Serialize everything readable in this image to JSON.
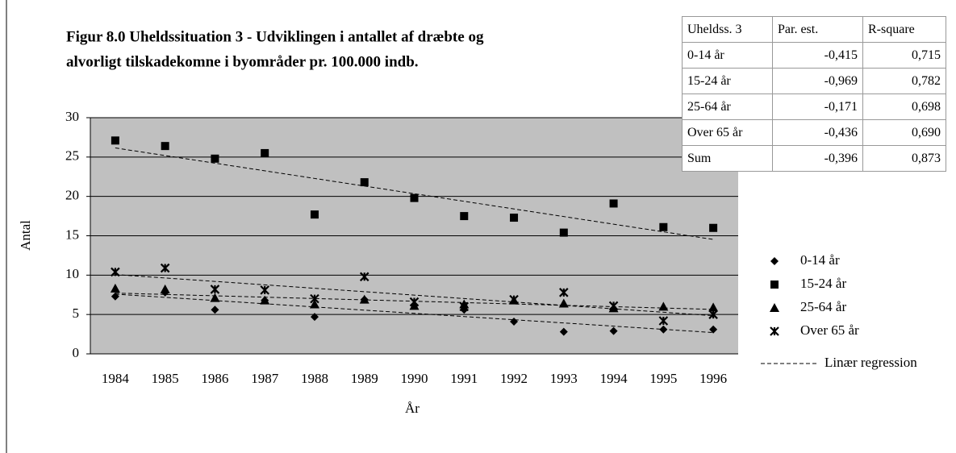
{
  "chart_data": {
    "type": "scatter",
    "title": [
      "Figur 8.0 Uheldssituation 3 - Udviklingen i antallet af dræbte og",
      "alvorligt tilskadekomne i byområder pr. 100.000 indb."
    ],
    "x_label": "År",
    "y_label": "Antal",
    "x": [
      1984,
      1985,
      1986,
      1987,
      1988,
      1989,
      1990,
      1991,
      1992,
      1993,
      1994,
      1995,
      1996
    ],
    "xlim": [
      1983.5,
      1996.5
    ],
    "xticks": [
      1984,
      1985,
      1986,
      1987,
      1988,
      1989,
      1990,
      1991,
      1992,
      1993,
      1994,
      1995,
      1996
    ],
    "ylim": [
      0,
      30
    ],
    "yticks": [
      0,
      5,
      10,
      15,
      20,
      25,
      30
    ],
    "grid": true,
    "background": "#c0c0c0",
    "regression_label": "Linær regression",
    "series": [
      {
        "name": "0-14 år",
        "color": "#000000",
        "marker": "diamond",
        "values": [
          7.3,
          7.8,
          5.6,
          6.8,
          4.7,
          6.9,
          6.2,
          5.6,
          4.1,
          2.8,
          2.9,
          3.1,
          3.1
        ]
      },
      {
        "name": "15-24 år",
        "color": "#000000",
        "marker": "square",
        "values": [
          27.1,
          26.4,
          24.8,
          25.5,
          17.7,
          21.8,
          19.8,
          17.5,
          17.3,
          15.4,
          19.1,
          16.1,
          16.0
        ]
      },
      {
        "name": "25-64 år",
        "color": "#000000",
        "marker": "triangle",
        "values": [
          8.3,
          8.2,
          7.1,
          6.8,
          6.3,
          6.9,
          6.1,
          6.3,
          6.8,
          6.4,
          5.8,
          6.0,
          5.9
        ]
      },
      {
        "name": "Over 65 år",
        "color": "#000000",
        "marker": "x",
        "values": [
          10.4,
          10.9,
          8.2,
          8.1,
          7.0,
          9.8,
          6.6,
          6.0,
          6.9,
          7.8,
          6.1,
          4.2,
          5.0
        ]
      }
    ]
  },
  "table": {
    "header": [
      "Uheldss. 3",
      "Par. est.",
      "R-square"
    ],
    "rows": [
      [
        "0-14 år",
        "-0,415",
        "0,715"
      ],
      [
        "15-24 år",
        "-0,969",
        "0,782"
      ],
      [
        "25-64 år",
        "-0,171",
        "0,698"
      ],
      [
        "Over 65 år",
        "-0,436",
        "0,690"
      ],
      [
        "Sum",
        "-0,396",
        "0,873"
      ]
    ]
  }
}
